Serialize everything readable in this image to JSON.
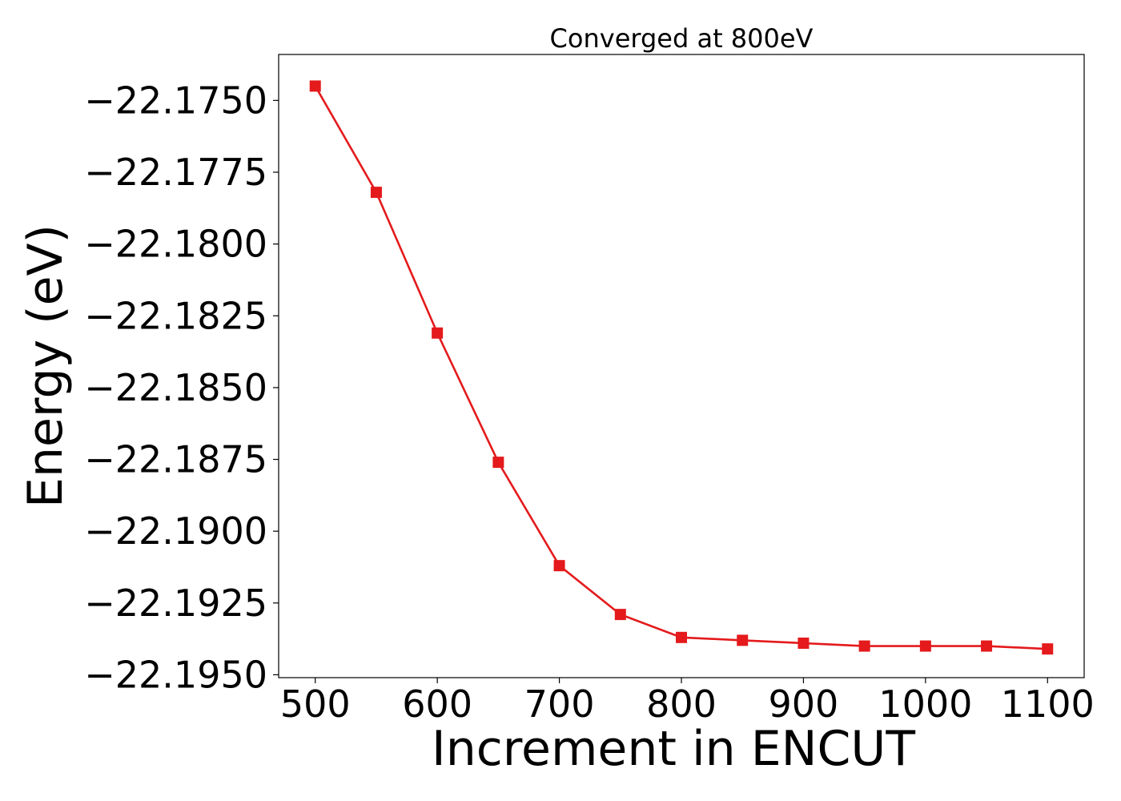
{
  "chart_data": {
    "type": "line",
    "title": "Converged at 800eV",
    "xlabel": "Increment in ENCUT",
    "ylabel": "Energy (eV)",
    "xlim": [
      470,
      1130
    ],
    "ylim": [
      -22.1951,
      -22.1734
    ],
    "xticks": [
      500,
      600,
      700,
      800,
      900,
      1000,
      1100
    ],
    "xtick_labels": [
      "500",
      "600",
      "700",
      "800",
      "900",
      "1000",
      "1100"
    ],
    "yticks": [
      -22.175,
      -22.1775,
      -22.18,
      -22.1825,
      -22.185,
      -22.1875,
      -22.19,
      -22.1925,
      -22.195
    ],
    "ytick_labels": [
      "−22.1750",
      "−22.1775",
      "−22.1800",
      "−22.1825",
      "−22.1850",
      "−22.1875",
      "−22.1900",
      "−22.1925",
      "−22.1950"
    ],
    "grid": false,
    "series": [
      {
        "color": "#e41a1c",
        "marker": "square",
        "x": [
          500,
          550,
          600,
          650,
          700,
          750,
          800,
          850,
          900,
          950,
          1000,
          1050,
          1100
        ],
        "y": [
          -22.1745,
          -22.1782,
          -22.1831,
          -22.1876,
          -22.1912,
          -22.1929,
          -22.1937,
          -22.1938,
          -22.1939,
          -22.194,
          -22.194,
          -22.194,
          -22.1941
        ]
      }
    ]
  }
}
